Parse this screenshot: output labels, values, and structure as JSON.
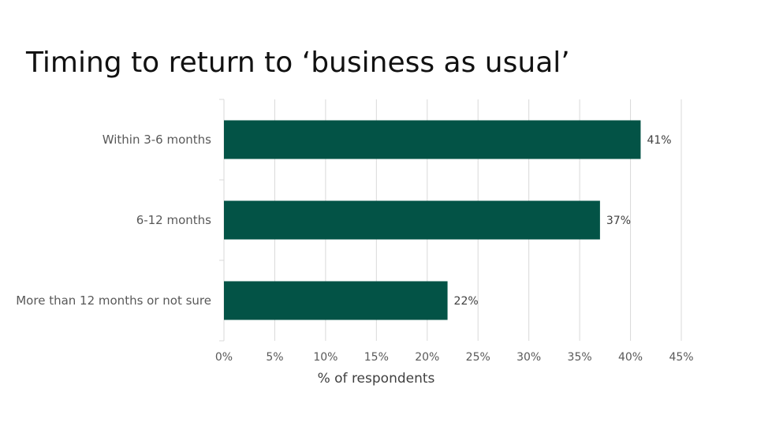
{
  "chart_data": {
    "type": "bar",
    "orientation": "horizontal",
    "title": "Timing to return to ‘business as usual’",
    "categories": [
      "Within 3-6 months",
      "6-12 months",
      "More than 12 months or not sure"
    ],
    "values": [
      41,
      37,
      22
    ],
    "value_labels": [
      "41%",
      "37%",
      "22%"
    ],
    "xlabel": "% of respondents",
    "ylabel": "",
    "xlim": [
      0,
      45
    ],
    "xticks": [
      0,
      5,
      10,
      15,
      20,
      25,
      30,
      35,
      40,
      45
    ],
    "xtick_labels": [
      "0%",
      "5%",
      "10%",
      "15%",
      "20%",
      "25%",
      "30%",
      "35%",
      "40%",
      "45%"
    ],
    "grid": true,
    "legend": "none",
    "bar_color": "#035346",
    "grid_color": "#d9d9d9"
  }
}
